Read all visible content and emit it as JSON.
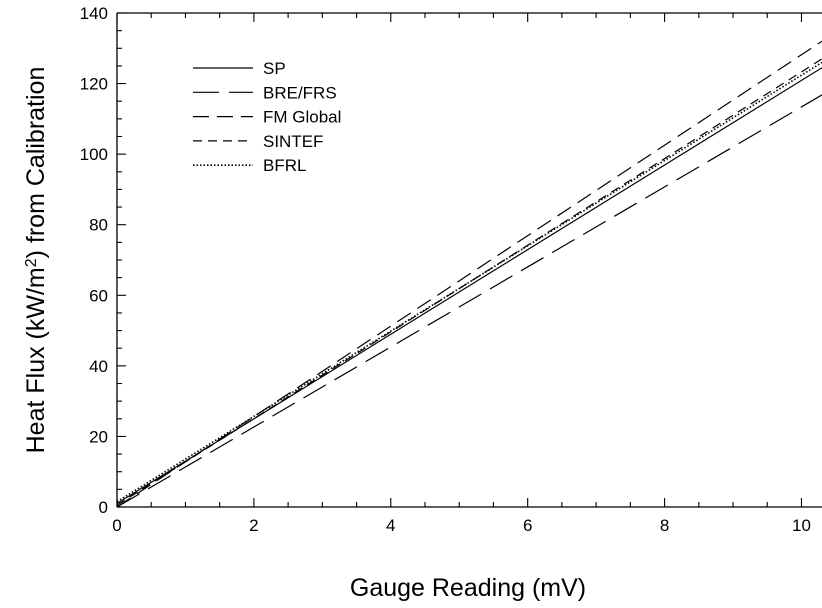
{
  "chart_data": {
    "type": "line",
    "title": "",
    "xlabel": "Gauge Reading (mV)",
    "ylabel": "Heat Flux (kW/m²) from Calibration",
    "xlim": [
      0,
      10.3
    ],
    "ylim": [
      0,
      140
    ],
    "x_ticks": [
      0,
      2,
      4,
      6,
      8,
      10
    ],
    "y_ticks": [
      0,
      20,
      40,
      60,
      80,
      100,
      120,
      140
    ],
    "grid": false,
    "legend": "top-left",
    "series": [
      {
        "name": "SP",
        "x": [
          0,
          10.3
        ],
        "y": [
          1.0,
          124.5
        ],
        "dash": "solid"
      },
      {
        "name": "BRE/FRS",
        "x": [
          0,
          10.3
        ],
        "y": [
          0.0,
          116.8
        ],
        "dash": "long-dash"
      },
      {
        "name": "FM Global",
        "x": [
          0,
          10.3
        ],
        "y": [
          0.0,
          132.0
        ],
        "dash": "dash"
      },
      {
        "name": "SINTEF",
        "x": [
          0,
          10.3
        ],
        "y": [
          0.5,
          127.0
        ],
        "dash": "short-dash"
      },
      {
        "name": "BFRL",
        "x": [
          0,
          10.3
        ],
        "y": [
          1.5,
          126.0
        ],
        "dash": "dotted"
      }
    ]
  }
}
